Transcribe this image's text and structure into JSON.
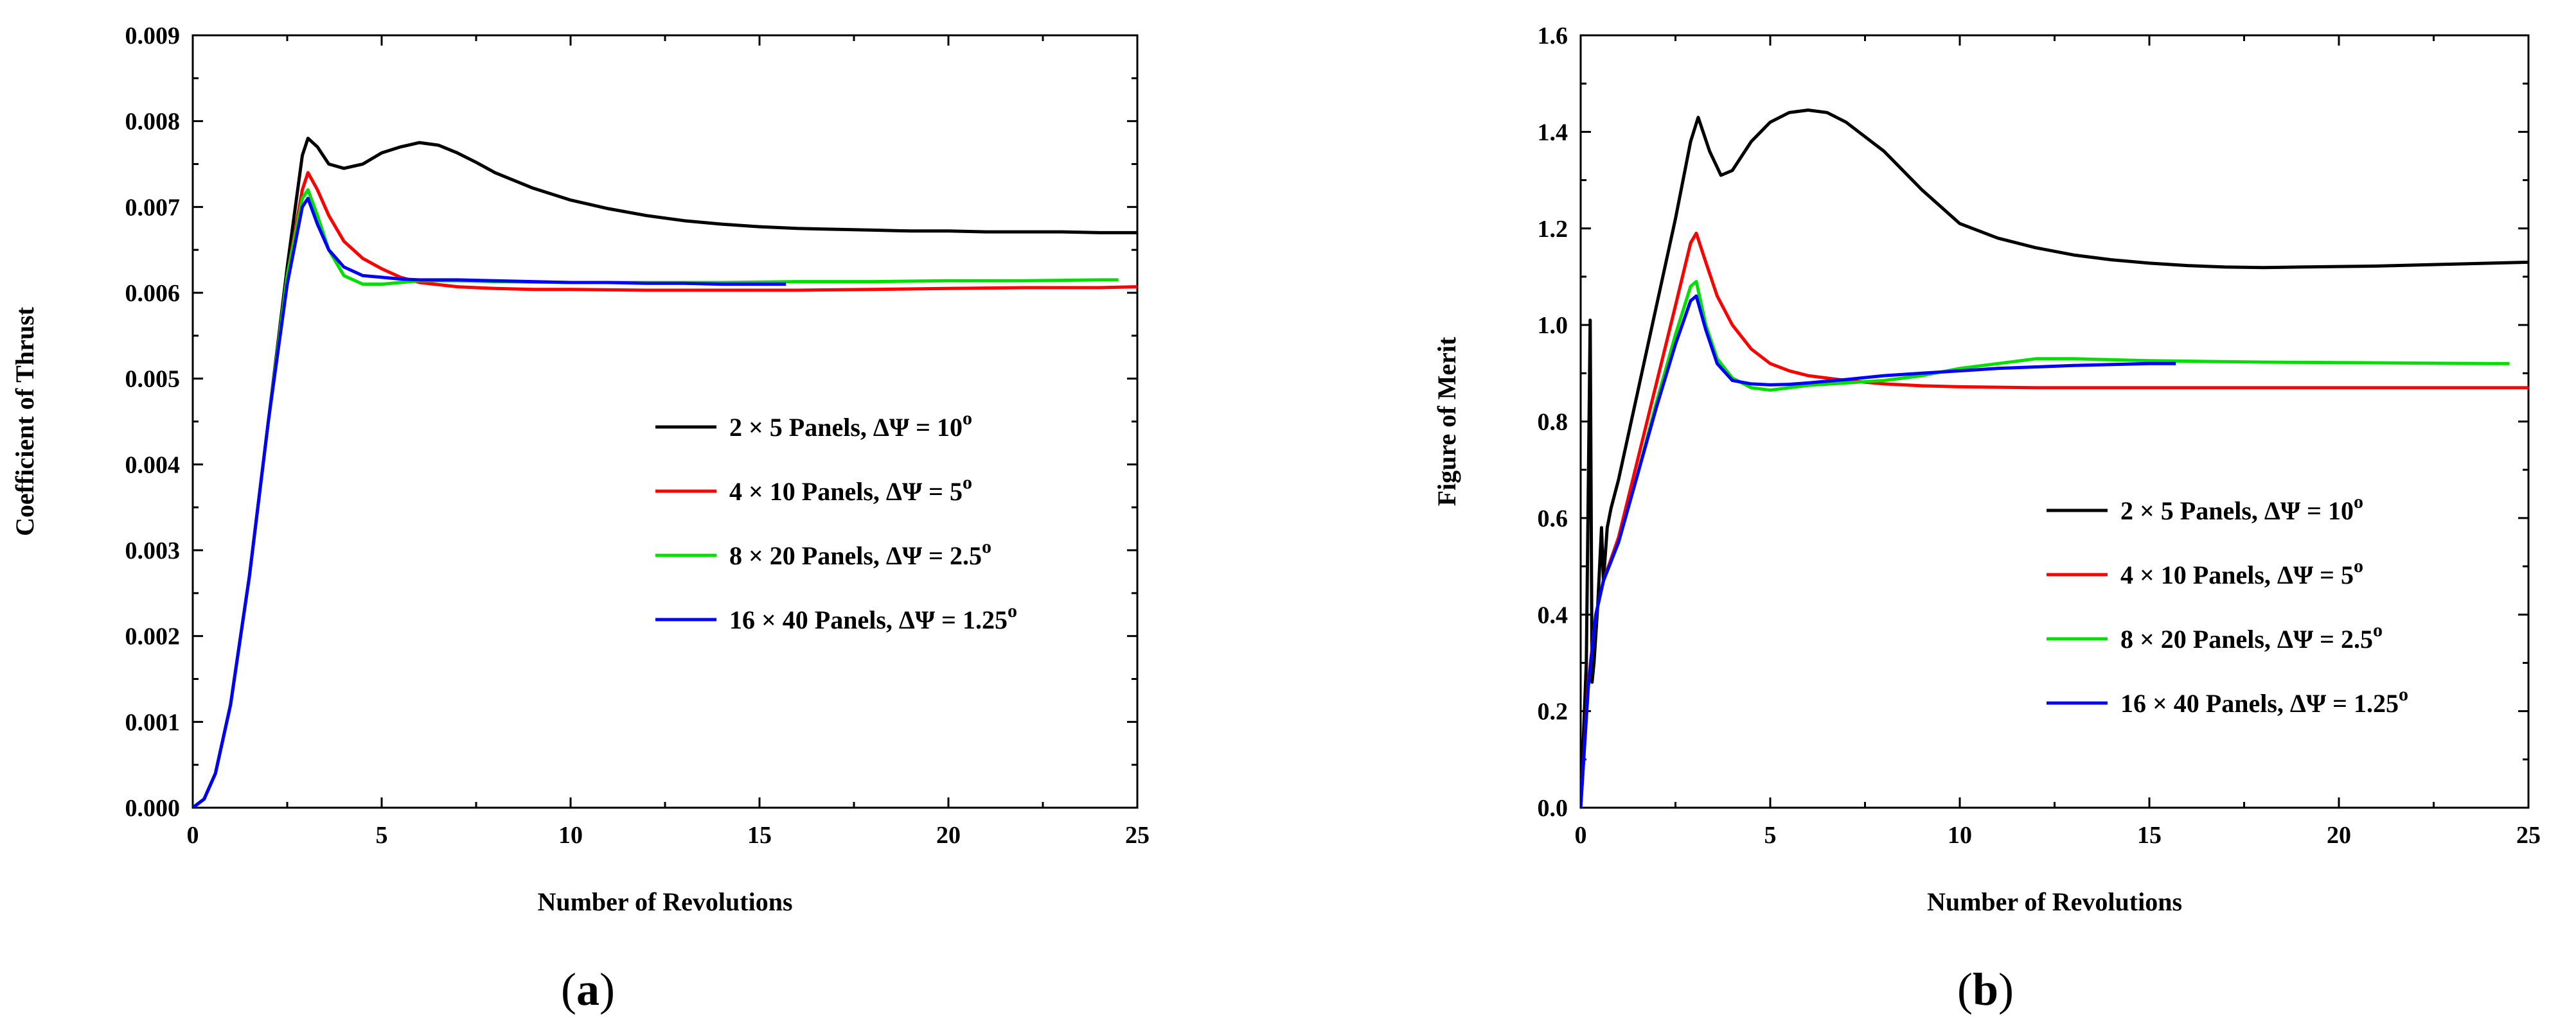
{
  "chart_data": [
    {
      "type": "line",
      "panel": "(a)",
      "panel_letter": "a",
      "title": "",
      "xlabel": "Number of Revolutions",
      "ylabel": "Coefficient of Thrust",
      "xlim": [
        0,
        25
      ],
      "ylim": [
        0,
        0.009
      ],
      "xticks": [
        0,
        5,
        10,
        15,
        20,
        25
      ],
      "xtick_labels": [
        "0",
        "5",
        "10",
        "15",
        "20",
        "25"
      ],
      "yticks": [
        0,
        0.001,
        0.002,
        0.003,
        0.004,
        0.005,
        0.006,
        0.007,
        0.008,
        0.009
      ],
      "ytick_labels": [
        "0.000",
        "0.001",
        "0.002",
        "0.003",
        "0.004",
        "0.005",
        "0.006",
        "0.007",
        "0.008",
        "0.009"
      ],
      "grid": false,
      "legend_position": "center-right",
      "series": [
        {
          "name": "2 × 5 Panels, ΔΨ = 10",
          "superscript": "o",
          "color": "#000000",
          "x": [
            0,
            0.3,
            0.6,
            1,
            1.5,
            2,
            2.5,
            2.9,
            3.05,
            3.3,
            3.6,
            4,
            4.5,
            5,
            5.5,
            6,
            6.5,
            7,
            7.5,
            8,
            9,
            10,
            11,
            12,
            13,
            14,
            15,
            16,
            17,
            18,
            19,
            20,
            21,
            22,
            23,
            24,
            25
          ],
          "y": [
            0,
            0.0001,
            0.0004,
            0.0012,
            0.0027,
            0.0045,
            0.0063,
            0.0076,
            0.0078,
            0.0077,
            0.0075,
            0.00745,
            0.0075,
            0.00763,
            0.0077,
            0.00775,
            0.00772,
            0.00763,
            0.00752,
            0.0074,
            0.00722,
            0.00708,
            0.00698,
            0.0069,
            0.00684,
            0.0068,
            0.00677,
            0.00675,
            0.00674,
            0.00673,
            0.00672,
            0.00672,
            0.00671,
            0.00671,
            0.00671,
            0.0067,
            0.0067
          ]
        },
        {
          "name": "4 × 10 Panels, ΔΨ = 5",
          "superscript": "o",
          "color": "#ff0000",
          "x": [
            0,
            0.3,
            0.6,
            1,
            1.5,
            2,
            2.5,
            2.9,
            3.05,
            3.3,
            3.6,
            4,
            4.5,
            5,
            5.5,
            6,
            7,
            8,
            9,
            10,
            12,
            14,
            16,
            18,
            20,
            22,
            24,
            25
          ],
          "y": [
            0,
            0.0001,
            0.0004,
            0.0012,
            0.0027,
            0.0045,
            0.0062,
            0.0072,
            0.0074,
            0.0072,
            0.0069,
            0.0066,
            0.0064,
            0.00628,
            0.00618,
            0.00612,
            0.00607,
            0.00605,
            0.00604,
            0.00604,
            0.00603,
            0.00603,
            0.00603,
            0.00604,
            0.00605,
            0.00606,
            0.00606,
            0.00607
          ]
        },
        {
          "name": "8 × 20 Panels, ΔΨ = 2.5",
          "superscript": "o",
          "color": "#00e000",
          "x": [
            0,
            0.3,
            0.6,
            1,
            1.5,
            2,
            2.5,
            2.9,
            3.05,
            3.3,
            3.6,
            4,
            4.5,
            5,
            5.5,
            6,
            7,
            8,
            10,
            12,
            14,
            16,
            18,
            20,
            22,
            24,
            24.5
          ],
          "y": [
            0,
            0.0001,
            0.0004,
            0.0012,
            0.0027,
            0.0045,
            0.0062,
            0.0071,
            0.0072,
            0.0069,
            0.0065,
            0.0062,
            0.0061,
            0.0061,
            0.00612,
            0.00614,
            0.00614,
            0.00613,
            0.00612,
            0.00612,
            0.00612,
            0.00613,
            0.00613,
            0.00614,
            0.00614,
            0.00615,
            0.00615
          ]
        },
        {
          "name": "16 × 40 Panels, ΔΨ = 1.25",
          "superscript": "o",
          "color": "#0000ff",
          "x": [
            0,
            0.3,
            0.6,
            1,
            1.5,
            2,
            2.5,
            2.9,
            3.05,
            3.3,
            3.6,
            4,
            4.5,
            5,
            5.5,
            6,
            7,
            8,
            9,
            10,
            11,
            12,
            13,
            14,
            15,
            15.7
          ],
          "y": [
            0,
            0.0001,
            0.0004,
            0.0012,
            0.0027,
            0.0045,
            0.0061,
            0.007,
            0.0071,
            0.0068,
            0.0065,
            0.0063,
            0.0062,
            0.00618,
            0.00616,
            0.00615,
            0.00615,
            0.00614,
            0.00613,
            0.00612,
            0.00612,
            0.00611,
            0.00611,
            0.0061,
            0.0061,
            0.0061
          ]
        }
      ]
    },
    {
      "type": "line",
      "panel": "(b)",
      "panel_letter": "b",
      "title": "",
      "xlabel": "Number of Revolutions",
      "ylabel": "Figure of Merit",
      "xlim": [
        0,
        25
      ],
      "ylim": [
        0,
        1.6
      ],
      "xticks": [
        0,
        5,
        10,
        15,
        20,
        25
      ],
      "xtick_labels": [
        "0",
        "5",
        "10",
        "15",
        "20",
        "25"
      ],
      "yticks": [
        0,
        0.2,
        0.4,
        0.6,
        0.8,
        1.0,
        1.2,
        1.4,
        1.6
      ],
      "ytick_labels": [
        "0.0",
        "0.2",
        "0.4",
        "0.6",
        "0.8",
        "1.0",
        "1.2",
        "1.4",
        "1.6"
      ],
      "grid": false,
      "legend_position": "center-right",
      "series": [
        {
          "name": "2 × 5 Panels, ΔΨ = 10",
          "superscript": "o",
          "color": "#000000",
          "x": [
            0,
            0.15,
            0.25,
            0.3,
            0.35,
            0.45,
            0.55,
            0.6,
            0.7,
            0.8,
            1,
            1.5,
            2,
            2.5,
            2.9,
            3.1,
            3.4,
            3.7,
            4,
            4.5,
            5,
            5.5,
            6,
            6.5,
            7,
            8,
            9,
            10,
            11,
            12,
            13,
            14,
            15,
            16,
            17,
            18,
            19,
            20,
            21,
            22,
            23,
            24,
            25
          ],
          "y": [
            0,
            0.3,
            1.01,
            0.26,
            0.3,
            0.42,
            0.58,
            0.47,
            0.58,
            0.62,
            0.68,
            0.86,
            1.04,
            1.22,
            1.38,
            1.43,
            1.36,
            1.31,
            1.32,
            1.38,
            1.42,
            1.44,
            1.445,
            1.44,
            1.42,
            1.36,
            1.28,
            1.21,
            1.18,
            1.16,
            1.145,
            1.135,
            1.128,
            1.123,
            1.12,
            1.119,
            1.12,
            1.121,
            1.122,
            1.124,
            1.126,
            1.128,
            1.13
          ]
        },
        {
          "name": "4 × 10 Panels, ΔΨ = 5",
          "superscript": "o",
          "color": "#ff0000",
          "x": [
            0,
            0.2,
            0.4,
            0.6,
            1,
            1.5,
            2,
            2.5,
            2.9,
            3.05,
            3.3,
            3.6,
            4,
            4.5,
            5,
            5.5,
            6,
            7,
            8,
            9,
            10,
            12,
            14,
            16,
            18,
            20,
            22,
            24,
            25
          ],
          "y": [
            0,
            0.26,
            0.4,
            0.47,
            0.56,
            0.72,
            0.88,
            1.04,
            1.17,
            1.19,
            1.13,
            1.06,
            1.0,
            0.95,
            0.92,
            0.905,
            0.895,
            0.885,
            0.878,
            0.874,
            0.872,
            0.87,
            0.87,
            0.87,
            0.87,
            0.87,
            0.87,
            0.87,
            0.87
          ]
        },
        {
          "name": "8 × 20 Panels, ΔΨ = 2.5",
          "superscript": "o",
          "color": "#00e000",
          "x": [
            0,
            0.2,
            0.4,
            0.6,
            1,
            1.5,
            2,
            2.5,
            2.9,
            3.05,
            3.3,
            3.6,
            4,
            4.5,
            5,
            5.5,
            6,
            7,
            8,
            9,
            10,
            11,
            12,
            13,
            14,
            15,
            16,
            18,
            20,
            22,
            24,
            24.5
          ],
          "y": [
            0,
            0.25,
            0.4,
            0.47,
            0.55,
            0.69,
            0.84,
            0.98,
            1.08,
            1.09,
            1.0,
            0.93,
            0.89,
            0.87,
            0.865,
            0.87,
            0.875,
            0.88,
            0.885,
            0.895,
            0.91,
            0.92,
            0.93,
            0.93,
            0.928,
            0.926,
            0.925,
            0.923,
            0.922,
            0.921,
            0.92,
            0.92
          ]
        },
        {
          "name": "16 × 40 Panels, ΔΨ = 1.25",
          "superscript": "o",
          "color": "#0000ff",
          "x": [
            0,
            0.2,
            0.4,
            0.6,
            1,
            1.5,
            2,
            2.5,
            2.9,
            3.05,
            3.3,
            3.6,
            4,
            4.5,
            5,
            5.5,
            6,
            7,
            8,
            9,
            10,
            11,
            12,
            13,
            14,
            15,
            15.7
          ],
          "y": [
            0,
            0.25,
            0.4,
            0.47,
            0.55,
            0.69,
            0.83,
            0.96,
            1.05,
            1.06,
            0.99,
            0.92,
            0.885,
            0.878,
            0.876,
            0.877,
            0.88,
            0.887,
            0.895,
            0.9,
            0.905,
            0.91,
            0.913,
            0.916,
            0.918,
            0.92,
            0.92
          ]
        }
      ]
    }
  ]
}
